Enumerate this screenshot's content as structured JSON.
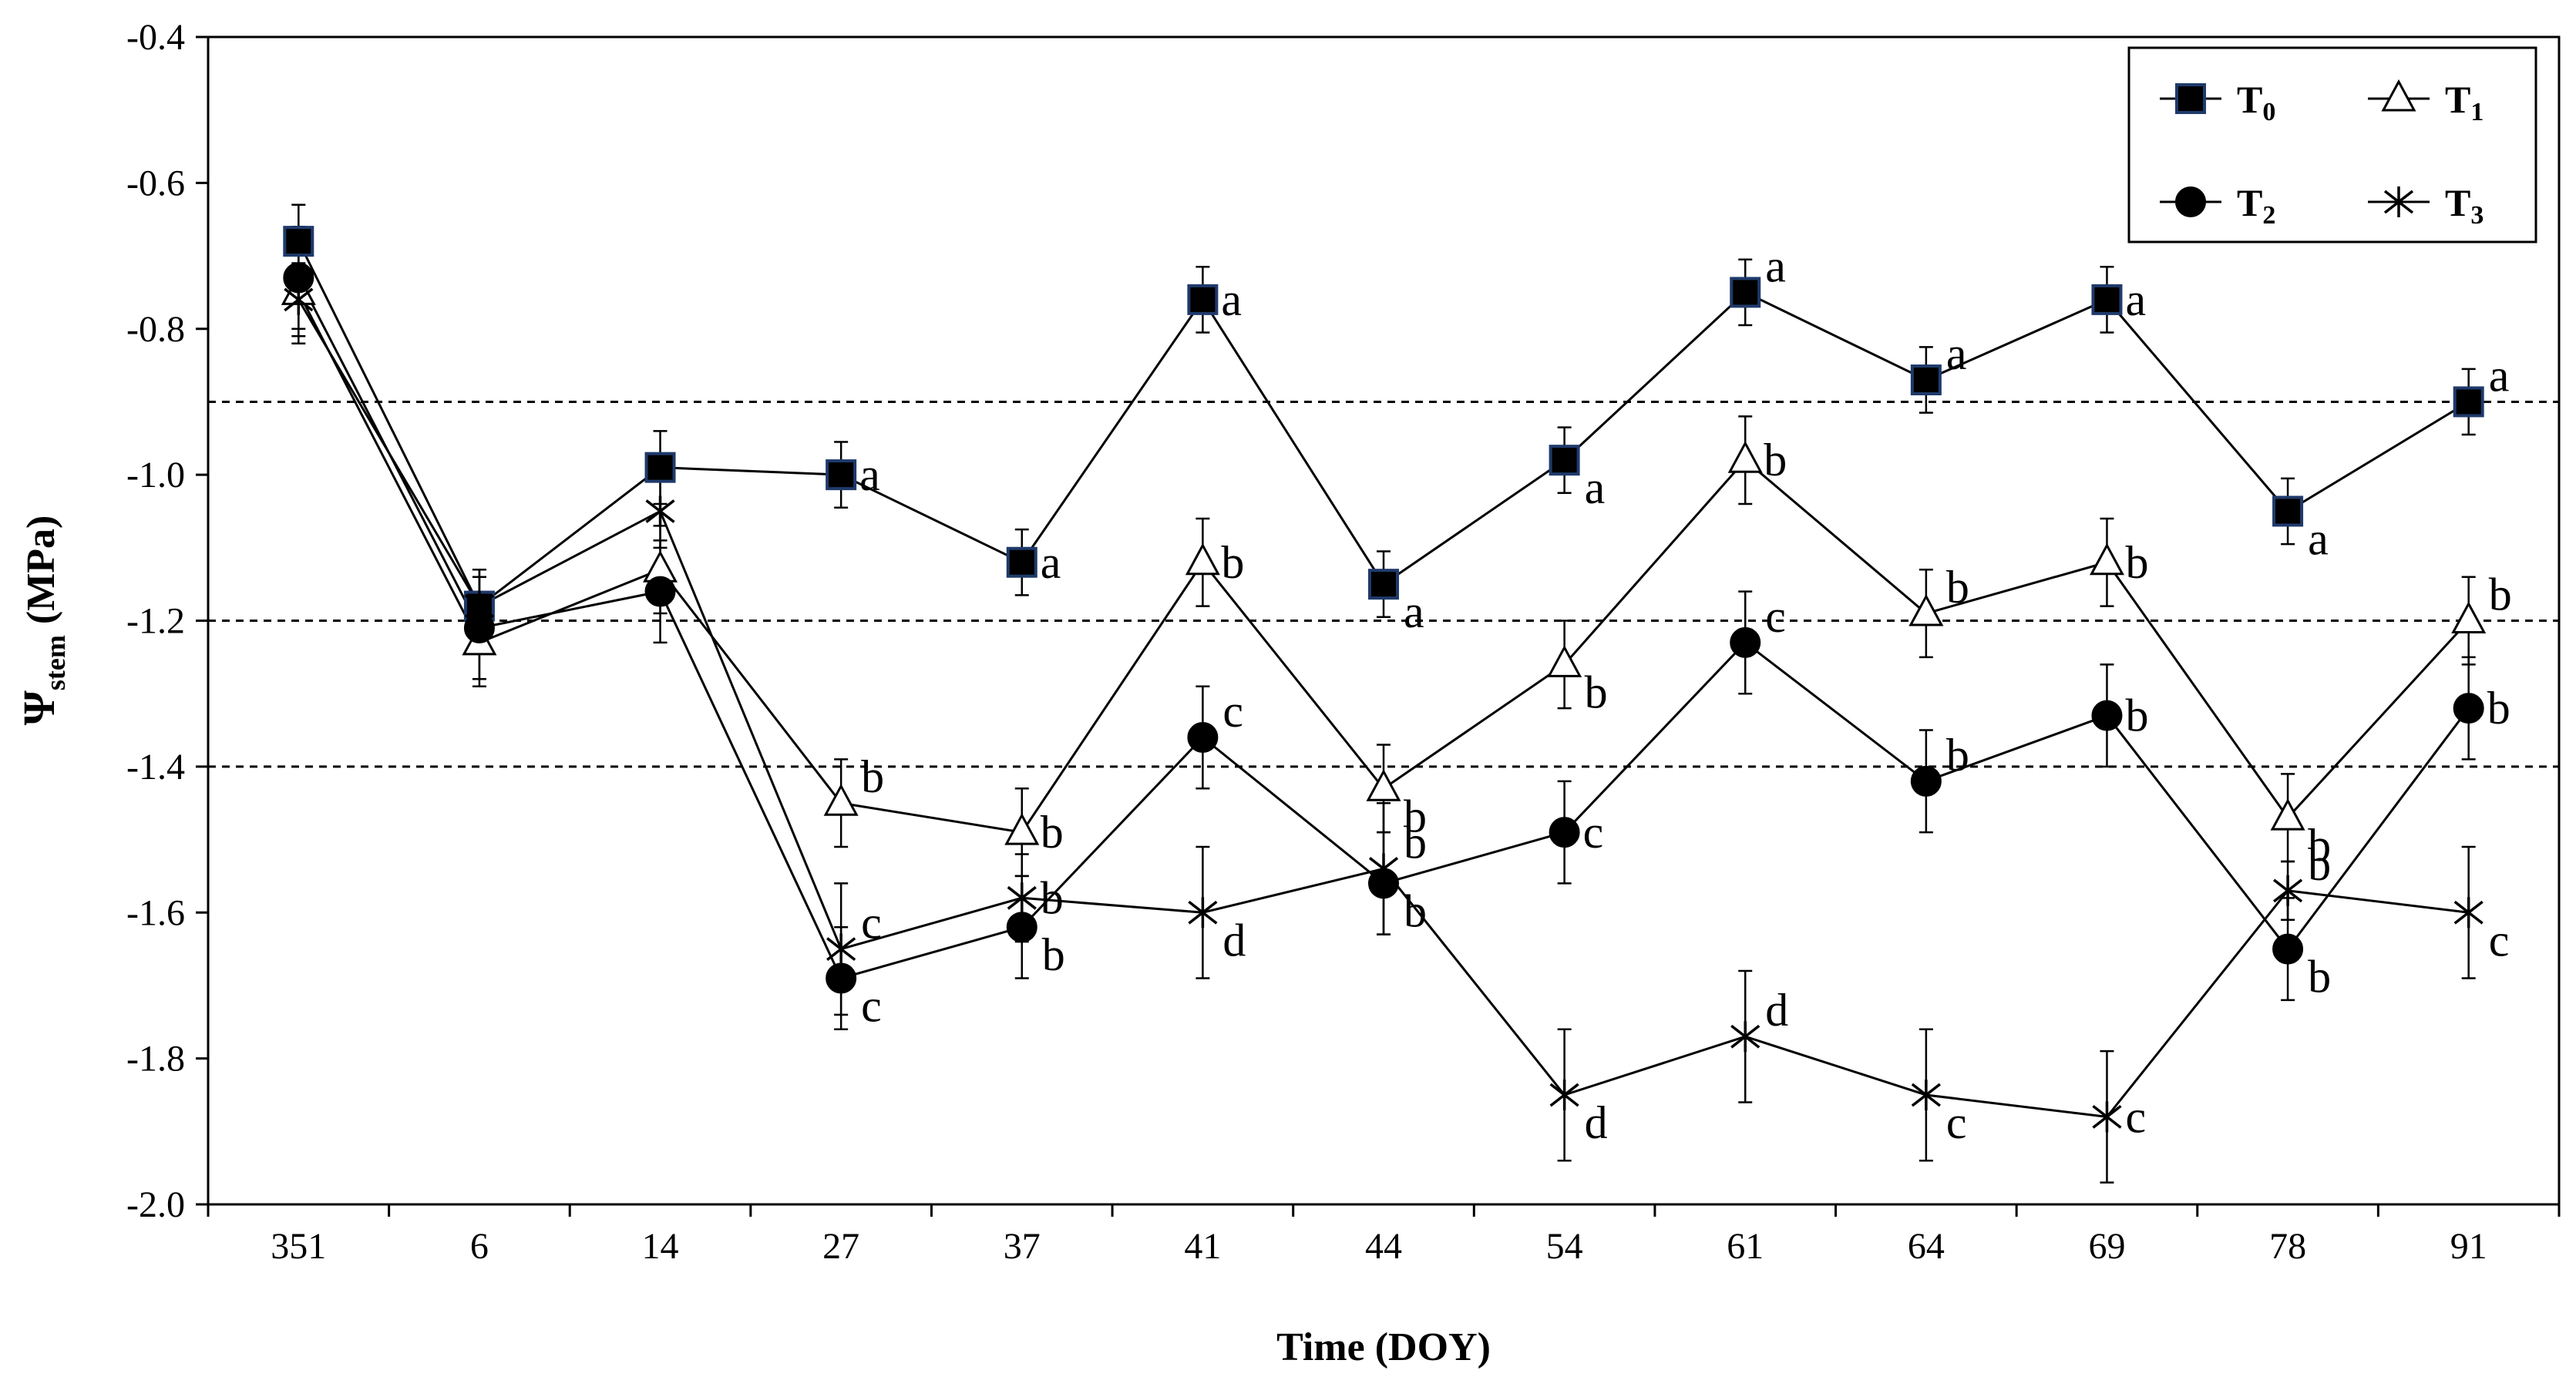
{
  "chart_data": {
    "type": "line",
    "title": "",
    "xlabel": "Time (DOY)",
    "ylabel": {
      "symbol": "Ψ",
      "subscript": "stem",
      "unit": "(MPa)"
    },
    "categories": [
      "351",
      "6",
      "14",
      "27",
      "37",
      "41",
      "44",
      "54",
      "61",
      "64",
      "69",
      "78",
      "91"
    ],
    "ylim": [
      -2.0,
      -0.4
    ],
    "yticks": [
      -0.4,
      -0.6,
      -0.8,
      -1.0,
      -1.2,
      -1.4,
      -1.6,
      -1.8,
      -2.0
    ],
    "ytick_labels": [
      "-0.4",
      "-0.6",
      "-0.8",
      "-1.0",
      "-1.2",
      "-1.4",
      "-1.6",
      "-1.8",
      "-2.0"
    ],
    "reference_lines": [
      -0.9,
      -1.2,
      -1.4
    ],
    "legend": {
      "position": "top-right",
      "entries": [
        {
          "base": "T",
          "sub": "0",
          "marker": "square"
        },
        {
          "base": "T",
          "sub": "1",
          "marker": "triangle"
        },
        {
          "base": "T",
          "sub": "2",
          "marker": "circle"
        },
        {
          "base": "T",
          "sub": "3",
          "marker": "star"
        }
      ]
    },
    "series": [
      {
        "name": "T0",
        "marker": "square",
        "color": "#000000",
        "edge": "#1f3a6b",
        "values": [
          -0.68,
          -1.18,
          -0.99,
          -1.0,
          -1.12,
          -0.76,
          -1.15,
          -0.98,
          -0.75,
          -0.87,
          -0.76,
          -1.05,
          -0.9
        ],
        "errors": [
          0.05,
          0.05,
          0.05,
          0.045,
          0.045,
          0.045,
          0.045,
          0.045,
          0.045,
          0.045,
          0.045,
          0.045,
          0.045
        ],
        "letters": [
          "",
          "",
          "",
          "a",
          "a",
          "a",
          "a",
          "a",
          "a",
          "a",
          "a",
          "a",
          "a"
        ],
        "letter_pos": [
          "",
          "",
          "",
          "r",
          "r",
          "r",
          "br",
          "br",
          "tr",
          "tr",
          "r",
          "br",
          "tr"
        ]
      },
      {
        "name": "T1",
        "marker": "triangle",
        "color": "#ffffff",
        "edge": "#000000",
        "values": [
          -0.75,
          -1.23,
          -1.13,
          -1.45,
          -1.49,
          -1.12,
          -1.43,
          -1.26,
          -0.98,
          -1.19,
          -1.12,
          -1.47,
          -1.2
        ],
        "errors": [
          0.07,
          0.06,
          0.06,
          0.06,
          0.06,
          0.06,
          0.06,
          0.06,
          0.06,
          0.06,
          0.06,
          0.06,
          0.06
        ],
        "letters": [
          "",
          "",
          "",
          "b",
          "b",
          "b",
          "b",
          "b",
          "b",
          "b",
          "b",
          "b",
          "b"
        ],
        "letter_pos": [
          "",
          "",
          "",
          "tr",
          "r",
          "r",
          "br",
          "br",
          "r",
          "tr",
          "r",
          "br",
          "tr"
        ]
      },
      {
        "name": "T2",
        "marker": "circle",
        "color": "#000000",
        "edge": "#000000",
        "values": [
          -0.73,
          -1.21,
          -1.16,
          -1.69,
          -1.62,
          -1.36,
          -1.56,
          -1.49,
          -1.23,
          -1.42,
          -1.33,
          -1.65,
          -1.32
        ],
        "errors": [
          0.07,
          0.07,
          0.07,
          0.07,
          0.07,
          0.07,
          0.07,
          0.07,
          0.07,
          0.07,
          0.07,
          0.07,
          0.07
        ],
        "letters": [
          "",
          "",
          "",
          "c",
          "b",
          "c",
          "b",
          "c",
          "c",
          "b",
          "b",
          "b",
          "b"
        ],
        "letter_pos": [
          "",
          "",
          "",
          "br",
          "br",
          "tr",
          "br",
          "r",
          "tr",
          "tr",
          "r",
          "br",
          "r"
        ]
      },
      {
        "name": "T3",
        "marker": "star",
        "color": "#000000",
        "edge": "#000000",
        "values": [
          -0.76,
          -1.18,
          -1.05,
          -1.65,
          -1.58,
          -1.6,
          -1.54,
          -1.85,
          -1.77,
          -1.85,
          -1.88,
          -1.57,
          -1.6
        ],
        "errors": [
          0.05,
          0.05,
          0.05,
          0.09,
          0.06,
          0.09,
          0.09,
          0.09,
          0.09,
          0.09,
          0.09,
          0.04,
          0.09
        ],
        "letters": [
          "",
          "",
          "",
          "c",
          "b",
          "d",
          "b",
          "d",
          "d",
          "c",
          "c",
          "b",
          "c"
        ],
        "letter_pos": [
          "",
          "",
          "",
          "tr",
          "r",
          "br",
          "tr",
          "br",
          "tr",
          "br",
          "r",
          "tr",
          "br"
        ]
      }
    ]
  }
}
